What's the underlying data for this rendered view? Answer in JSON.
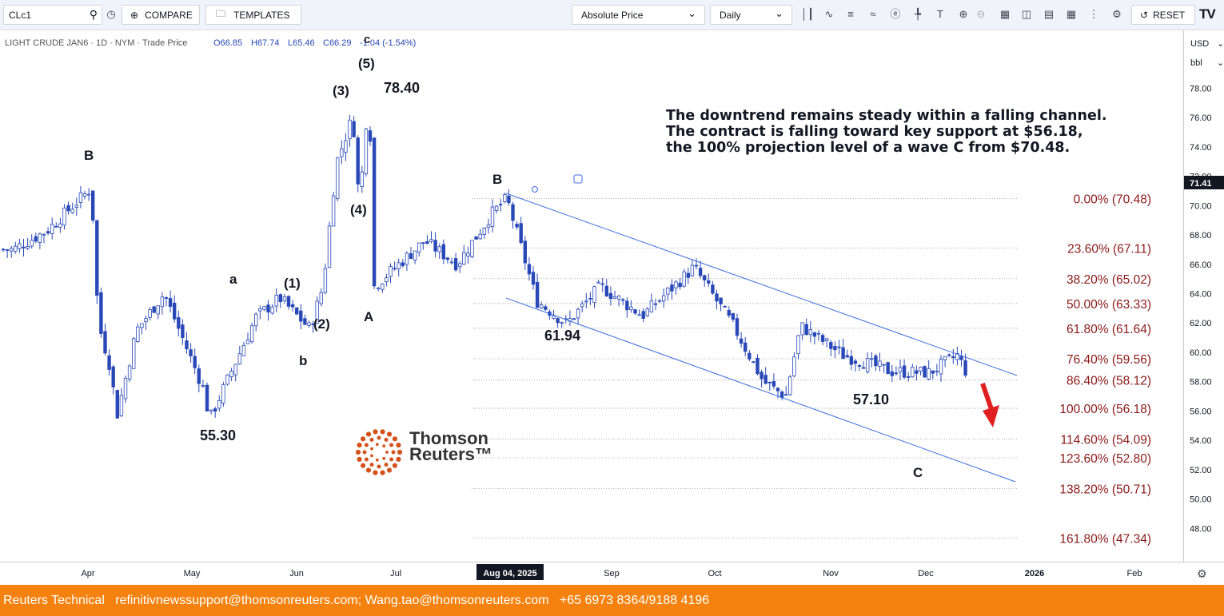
{
  "toolbar": {
    "symbol": "CLc1",
    "compare_label": "COMPARE",
    "templates_label": "TEMPLATES",
    "price_type": "Absolute Price",
    "interval": "Daily",
    "reset_label": "RESET",
    "brand_mark": "TV",
    "icons": [
      "search-icon",
      "clock-icon",
      "plus-circle-icon",
      "folder-icon",
      "chevron-down-icon",
      "candles-icon",
      "chart-type-icon",
      "bars-icon",
      "waves-icon",
      "currency-icon",
      "crosshair-icon",
      "text-tool-icon",
      "zoom-in-icon",
      "zoom-out-icon",
      "grid-icon",
      "layout-icon",
      "save-icon",
      "calendar-icon",
      "more-vert-icon",
      "settings-icon",
      "reset-icon"
    ]
  },
  "legend": {
    "instrument": "LIGHT CRUDE JAN6 · 1D · NYM · Trade Price",
    "open": "O66.85",
    "high": "H67.74",
    "low": "L65.46",
    "close": "C66.29",
    "change": "-1.04 (-1.54%)"
  },
  "price_axis": {
    "currency": "USD",
    "unit": "bbl",
    "ticks": [
      "78.00",
      "76.00",
      "74.00",
      "72.00",
      "70.00",
      "68.00",
      "66.00",
      "64.00",
      "62.00",
      "60.00",
      "58.00",
      "56.00",
      "54.00",
      "52.00",
      "50.00",
      "48.00"
    ],
    "last_price": "71.41"
  },
  "time_axis": {
    "ticks": [
      "Apr",
      "May",
      "Jun",
      "Jul",
      "Aug 04, 2025",
      "Sep",
      "Oct",
      "Nov",
      "Dec",
      "2026",
      "Feb"
    ]
  },
  "annotation": {
    "lines": [
      "The downtrend remains steady within a falling channel.",
      "The contract is falling toward key support at $56.18,",
      "the 100% projection level of a wave C from $70.48."
    ]
  },
  "wave_labels": {
    "B1": "B",
    "a": "a",
    "b": "b",
    "w1": "(1)",
    "w2": "(2)",
    "w3": "(3)",
    "w4": "(4)",
    "w5": "(5)",
    "A": "A",
    "B2": "B",
    "C": "C",
    "c_top": "c"
  },
  "price_labels": {
    "p5530": "55.30",
    "p7840": "78.40",
    "p6194": "61.94",
    "p5710": "57.10"
  },
  "fib_levels": [
    {
      "label": "0.00% (70.48)",
      "price": 70.48
    },
    {
      "label": "23.60% (67.11)",
      "price": 67.11
    },
    {
      "label": "38.20% (65.02)",
      "price": 65.02
    },
    {
      "label": "50.00% (63.33)",
      "price": 63.33
    },
    {
      "label": "61.80% (61.64)",
      "price": 61.64
    },
    {
      "label": "76.40% (59.56)",
      "price": 59.56
    },
    {
      "label": "86.40% (58.12)",
      "price": 58.12
    },
    {
      "label": "100.00% (56.18)",
      "price": 56.18
    },
    {
      "label": "114.60% (54.09)",
      "price": 54.09
    },
    {
      "label": "123.60% (52.80)",
      "price": 52.8
    },
    {
      "label": "138.20% (50.71)",
      "price": 50.71
    },
    {
      "label": "161.80% (47.34)",
      "price": 47.34
    }
  ],
  "logo": {
    "line1": "Thomson",
    "line2": "Reuters™"
  },
  "footer": {
    "text": "Reuters Technical   refinitivnewssupport@thomsonreuters.com; Wang.tao@thomsonreuters.com   +65 6973 8364/9188 4196"
  },
  "colors": {
    "candle": "#2848b8",
    "channel": "#3b6ee0",
    "fib_text": "#8b1a1a",
    "arrow": "#e02020",
    "footer_bg": "#f5820e",
    "logo_dots": "#d4521a"
  },
  "chart_data": {
    "type": "candlestick",
    "title": "LIGHT CRUDE JAN6 · 1D · NYM · Trade Price",
    "ylim": [
      46,
      80
    ],
    "close_path": [
      [
        "Mar 10",
        67.0
      ],
      [
        "Mar 20",
        68.3
      ],
      [
        "Apr 02",
        71.2
      ],
      [
        "Apr 04",
        62.0
      ],
      [
        "Apr 08",
        58.5
      ],
      [
        "Apr 09",
        55.3
      ],
      [
        "Apr 15",
        61.5
      ],
      [
        "Apr 23",
        64.0
      ],
      [
        "May 05",
        57.2
      ],
      [
        "May 06",
        55.3
      ],
      [
        "May 20",
        62.4
      ],
      [
        "May 27",
        63.7
      ],
      [
        "Jun 05",
        61.6
      ],
      [
        "Jun 09",
        64.5
      ],
      [
        "Jun 13",
        72.9
      ],
      [
        "Jun 18",
        76.1
      ],
      [
        "Jun 20",
        70.0
      ],
      [
        "Jun 23",
        78.4
      ],
      [
        "Jun 24",
        64.4
      ],
      [
        "Jul 10",
        67.6
      ],
      [
        "Jul 20",
        66.0
      ],
      [
        "Jul 31",
        69.5
      ],
      [
        "Aug 04",
        70.48
      ],
      [
        "Aug 12",
        63.5
      ],
      [
        "Aug 20",
        61.94
      ],
      [
        "Aug 29",
        64.5
      ],
      [
        "Sep 10",
        62.5
      ],
      [
        "Sep 25",
        65.8
      ],
      [
        "Oct 06",
        61.8
      ],
      [
        "Oct 14",
        58.0
      ],
      [
        "Oct 20",
        57.0
      ],
      [
        "Oct 24",
        61.8
      ],
      [
        "Nov 05",
        59.8
      ],
      [
        "Nov 20",
        58.7
      ],
      [
        "Dec 02",
        58.6
      ],
      [
        "Dec 10",
        59.8
      ],
      [
        "Dec 16",
        57.1
      ],
      [
        "Dec 17",
        57.9
      ]
    ]
  }
}
